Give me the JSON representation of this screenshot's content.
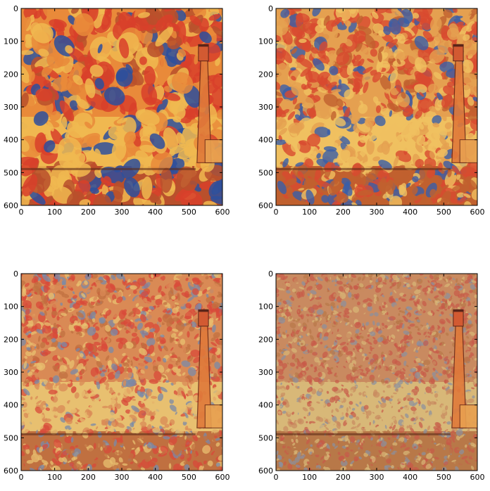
{
  "figure": {
    "description_free": true
  },
  "chart_data": [
    {
      "type": "heatmap",
      "xlim": [
        0,
        600
      ],
      "ylim": [
        600,
        0
      ],
      "xticks": [
        0,
        100,
        200,
        300,
        400,
        500,
        600
      ],
      "yticks": [
        0,
        100,
        200,
        300,
        400,
        500,
        600
      ],
      "grid": false,
      "style": "coarse",
      "colors": {
        "sky": "#e98a3a",
        "accent": "#d8402a",
        "blue": "#2d4f9c",
        "light": "#f0b850",
        "ground": "#b9502c"
      }
    },
    {
      "type": "heatmap",
      "xlim": [
        0,
        600
      ],
      "ylim": [
        600,
        0
      ],
      "xticks": [
        0,
        100,
        200,
        300,
        400,
        500,
        600
      ],
      "yticks": [
        0,
        100,
        200,
        300,
        400,
        500,
        600
      ],
      "grid": false,
      "style": "medium",
      "colors": {
        "sky": "#e5a050",
        "accent": "#d84a30",
        "blue": "#3a5ea8",
        "light": "#f0c060",
        "ground": "#c0602e"
      }
    },
    {
      "type": "heatmap",
      "xlim": [
        0,
        600
      ],
      "ylim": [
        600,
        0
      ],
      "xticks": [
        0,
        100,
        200,
        300,
        400,
        500,
        600
      ],
      "yticks": [
        0,
        100,
        200,
        300,
        400,
        500,
        600
      ],
      "grid": false,
      "style": "fine",
      "colors": {
        "sky": "#d98a55",
        "accent": "#d84a3a",
        "blue": "#7a8aa8",
        "light": "#e8c070",
        "ground": "#c07040"
      }
    },
    {
      "type": "heatmap",
      "xlim": [
        0,
        600
      ],
      "ylim": [
        600,
        0
      ],
      "xticks": [
        0,
        100,
        200,
        300,
        400,
        500,
        600
      ],
      "yticks": [
        0,
        100,
        200,
        300,
        400,
        500,
        600
      ],
      "grid": false,
      "style": "finest",
      "colors": {
        "sky": "#c98a60",
        "accent": "#c85a48",
        "blue": "#8a90a0",
        "light": "#d8b878",
        "ground": "#b87848"
      }
    }
  ]
}
